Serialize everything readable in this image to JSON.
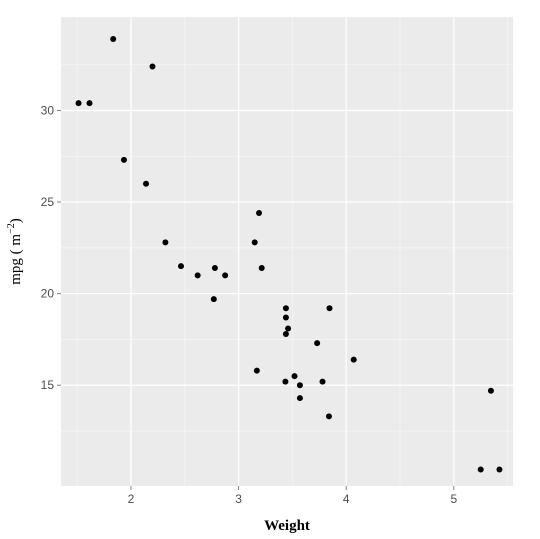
{
  "chart_data": {
    "type": "scatter",
    "title": "",
    "xlabel": "Weight",
    "ylabel": "mpg ( m",
    "ylabel_superscript": "−2",
    "ylabel_suffix": ")",
    "xlim": [
      1.35,
      5.55
    ],
    "ylim": [
      9.5,
      35.1
    ],
    "xticks": [
      2,
      3,
      4,
      5
    ],
    "yticks": [
      15,
      20,
      25,
      30
    ],
    "grid": true,
    "legend": "none",
    "colors": {
      "panel": "#ebebeb",
      "grid_major": "#ffffff",
      "grid_minor": "#f5f5f5",
      "point": "#000000",
      "tick_text": "#4d4d4d",
      "title_text": "#000000"
    },
    "points": [
      {
        "x": 2.62,
        "y": 21.0
      },
      {
        "x": 2.875,
        "y": 21.0
      },
      {
        "x": 2.32,
        "y": 22.8
      },
      {
        "x": 3.215,
        "y": 21.4
      },
      {
        "x": 3.44,
        "y": 18.7
      },
      {
        "x": 3.46,
        "y": 18.1
      },
      {
        "x": 3.57,
        "y": 14.3
      },
      {
        "x": 3.19,
        "y": 24.4
      },
      {
        "x": 3.15,
        "y": 22.8
      },
      {
        "x": 3.44,
        "y": 19.2
      },
      {
        "x": 3.44,
        "y": 17.8
      },
      {
        "x": 4.07,
        "y": 16.4
      },
      {
        "x": 3.73,
        "y": 17.3
      },
      {
        "x": 3.78,
        "y": 15.2
      },
      {
        "x": 5.25,
        "y": 10.4
      },
      {
        "x": 5.424,
        "y": 10.4
      },
      {
        "x": 5.345,
        "y": 14.7
      },
      {
        "x": 2.2,
        "y": 32.4
      },
      {
        "x": 1.615,
        "y": 30.4
      },
      {
        "x": 1.835,
        "y": 33.9
      },
      {
        "x": 2.465,
        "y": 21.5
      },
      {
        "x": 3.52,
        "y": 15.5
      },
      {
        "x": 3.435,
        "y": 15.2
      },
      {
        "x": 3.84,
        "y": 13.3
      },
      {
        "x": 3.845,
        "y": 19.2
      },
      {
        "x": 1.935,
        "y": 27.3
      },
      {
        "x": 2.14,
        "y": 26.0
      },
      {
        "x": 1.513,
        "y": 30.4
      },
      {
        "x": 3.17,
        "y": 15.8
      },
      {
        "x": 2.77,
        "y": 19.7
      },
      {
        "x": 3.57,
        "y": 15.0
      },
      {
        "x": 2.78,
        "y": 21.4
      }
    ]
  }
}
